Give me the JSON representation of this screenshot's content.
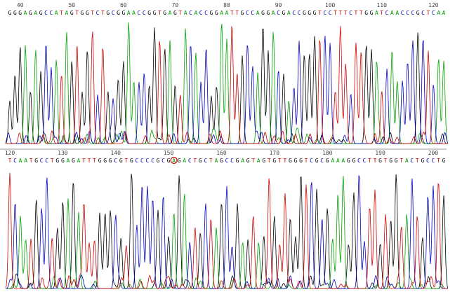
{
  "chart_data": {
    "type": "line",
    "title": "",
    "base_colors": {
      "A": "#00a000",
      "C": "#0000c0",
      "G": "#000000",
      "T": "#d00000"
    },
    "panels": [
      {
        "first_base": 38,
        "sequence": "GGGAGAGCCATAGTGGTCTGCGGAACCGGTGAGTACACCGGAATTGCCAGGACGACCGGGTCCTTTCTTGGATCAACCCGCTCAA",
        "ticks": [
          "40",
          "50",
          "60",
          "70",
          "80",
          "90",
          "100",
          "110",
          "120"
        ]
      },
      {
        "first_base": 120,
        "sequence": "TCAATGCCTGGAGATTTGGGCGTGCCCCGCGAGACTGCTAGCCGAGTAGTGTTGGGTCGCGAAAGGCCTTGTGGTACTGCCTG",
        "ticks": [
          "120",
          "130",
          "140",
          "150",
          "160",
          "170",
          "180",
          "190",
          "200"
        ],
        "highlighted_base": 151
      }
    ]
  }
}
